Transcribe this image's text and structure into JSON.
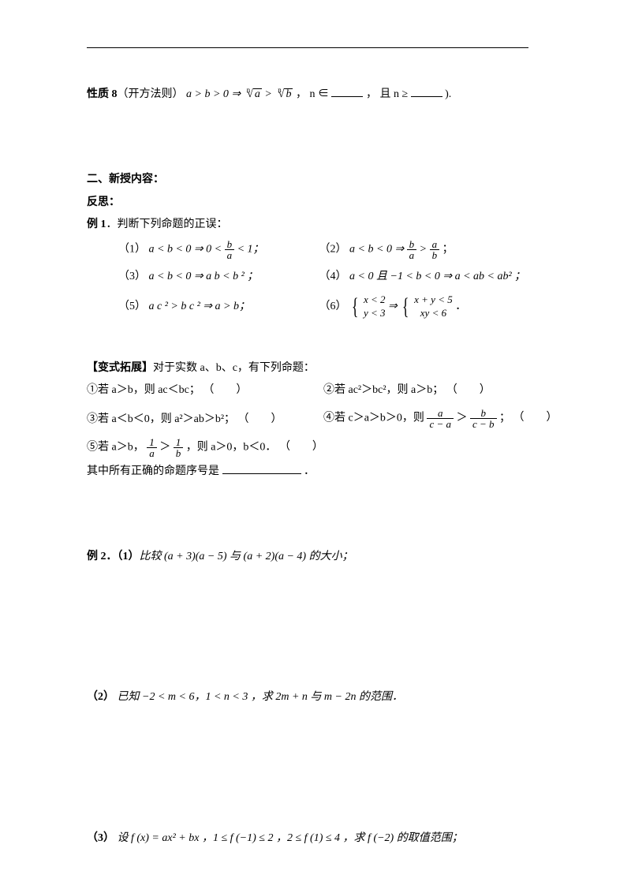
{
  "colors": {
    "text": "#000000",
    "bg": "#ffffff"
  },
  "fonts": {
    "body_size_pt": 11,
    "family": "SimSun"
  },
  "prop8": {
    "label": "性质 8",
    "paren": "（开方法则）",
    "expr_pre": "a > b > 0 ⇒ ",
    "root_a": "a",
    "root_b": "b",
    "sep": " > ",
    "tail1": " ， n ∈",
    "tail2": "， 且 n ≥",
    "tail3": ")."
  },
  "section2": {
    "title": "二、新授内容：",
    "sub": "反思："
  },
  "ex1": {
    "title": "例 1．判断下列命题的正误：",
    "items": {
      "1": {
        "label": "（1）",
        "expr": "a < b < 0 ⇒ 0 <",
        "frac_num": "b",
        "frac_den": "a",
        "tail": "< 1；"
      },
      "2": {
        "label": "（2）",
        "expr": "a < b < 0 ⇒",
        "frac1_num": "b",
        "frac1_den": "a",
        "mid": ">",
        "frac2_num": "a",
        "frac2_den": "b",
        "tail": "；"
      },
      "3": {
        "label": "（3）",
        "expr": "a < b < 0 ⇒ a b < b ² ；"
      },
      "4": {
        "label": "（4）",
        "expr": "a < 0 且 −1 < b < 0 ⇒ a < ab < ab² ；"
      },
      "5": {
        "label": "（5）",
        "expr": "a c ² > b c ² ⇒ a > b；"
      },
      "6": {
        "label": "（6）",
        "l1": "x < 2",
        "l2": "y < 3",
        "arrow": "⇒",
        "r1": "x + y < 5",
        "r2": "xy < 6",
        "tail": "．"
      }
    }
  },
  "variant": {
    "title": "【变式拓展】",
    "intro": "对于实数 a、b、c，有下列命题：",
    "items": {
      "1": "①若 a＞b，则 ac＜bc；",
      "2": "②若 ac²＞bc²，则 a＞b；",
      "3": "③若 a＜b＜0，则 a²＞ab＞b²；",
      "4_pre": "④若 c＞a＞b＞0，则",
      "4_f1n": "a",
      "4_f1d": "c − a",
      "4_mid": "＞",
      "4_f2n": "b",
      "4_f2d": "c − b",
      "4_tail": "；",
      "5_pre": "⑤若 a＞b，",
      "5_f1n": "1",
      "5_f1d": "a",
      "5_mid": "＞",
      "5_f2n": "1",
      "5_f2d": "b",
      "5_tail": "，则 a＞0，b＜0．"
    },
    "answer_label": "其中所有正确的命题序号是",
    "answer_tail": "．"
  },
  "ex2": {
    "title": "例 2．（1）",
    "part1": "比较 (a + 3)(a − 5) 与 (a + 2)(a − 4) 的大小；",
    "part2_label": "（2）",
    "part2": "已知 −2 < m < 6，1 < n < 3 ，求 2m + n 与 m − 2n 的范围．",
    "part3_label": "（3）",
    "part3": "设 f (x) = ax² + bx ，1 ≤ f (−1) ≤ 2 ，2 ≤ f (1) ≤ 4 ，求 f (−2) 的取值范围；"
  }
}
